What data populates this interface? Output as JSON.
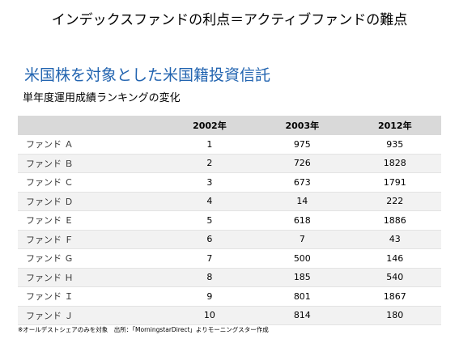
{
  "title": "インデックスファンドの利点＝アクティブファンドの難点",
  "subtitle": "米国株を対象とした米国籍投資信託",
  "caption": "単年度運用成績ランキングの変化",
  "table": {
    "header": [
      "",
      "2002年",
      "2003年",
      "2012年"
    ],
    "rows": [
      [
        "ファンド Ａ",
        "1",
        "975",
        "935"
      ],
      [
        "ファンド Ｂ",
        "2",
        "726",
        "1828"
      ],
      [
        "ファンド Ｃ",
        "3",
        "673",
        "1791"
      ],
      [
        "ファンド Ｄ",
        "4",
        "14",
        "222"
      ],
      [
        "ファンド Ｅ",
        "5",
        "618",
        "1886"
      ],
      [
        "ファンド Ｆ",
        "6",
        "7",
        "43"
      ],
      [
        "ファンド Ｇ",
        "7",
        "500",
        "146"
      ],
      [
        "ファンド Ｈ",
        "8",
        "185",
        "540"
      ],
      [
        "ファンド Ｉ",
        "9",
        "801",
        "1867"
      ],
      [
        "ファンド Ｊ",
        "10",
        "814",
        "180"
      ]
    ]
  },
  "footnote": "※オールデストシェアのみを対象　出所：「MorningstarDirect」よりモーニングスター作成"
}
